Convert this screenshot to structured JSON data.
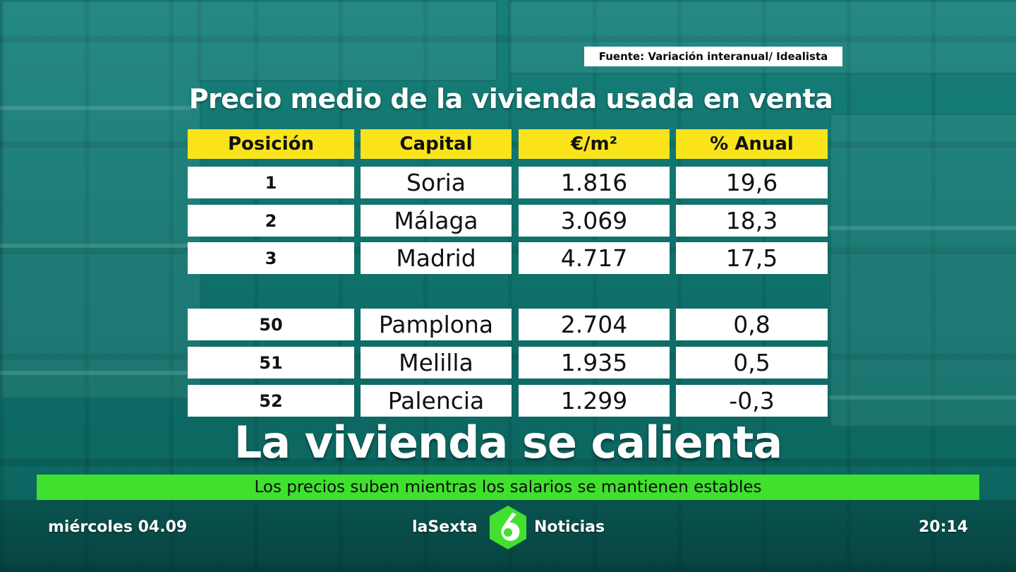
{
  "source": "Fuente: Variación interanual/ Idealista",
  "title": "Precio medio de la vivienda usada en venta",
  "table": {
    "headers": [
      "Posición",
      "Capital",
      "€/m²",
      "% Anual"
    ],
    "top_rows": [
      {
        "pos": "1",
        "city": "Soria",
        "price": "1.816",
        "annual": "19,6"
      },
      {
        "pos": "2",
        "city": "Málaga",
        "price": "3.069",
        "annual": "18,3"
      },
      {
        "pos": "3",
        "city": "Madrid",
        "price": "4.717",
        "annual": "17,5"
      }
    ],
    "bottom_rows": [
      {
        "pos": "50",
        "city": "Pamplona",
        "price": "2.704",
        "annual": "0,8"
      },
      {
        "pos": "51",
        "city": "Melilla",
        "price": "1.935",
        "annual": "0,5"
      },
      {
        "pos": "52",
        "city": "Palencia",
        "price": "1.299",
        "annual": "-0,3"
      }
    ]
  },
  "headline": "La vivienda se calienta",
  "subheadline": "Los precios suben mientras los salarios se mantienen estables",
  "footer": {
    "date": "miércoles 04.09",
    "channel": "laSexta",
    "program": "Noticias",
    "time": "20:14",
    "logo_icon": "lasexta-6-logo-icon"
  },
  "colors": {
    "header_yellow": "#f9e41c",
    "subbar_green": "#3fe02e",
    "logo_green": "#43e02f",
    "background_teal": "#146964"
  }
}
